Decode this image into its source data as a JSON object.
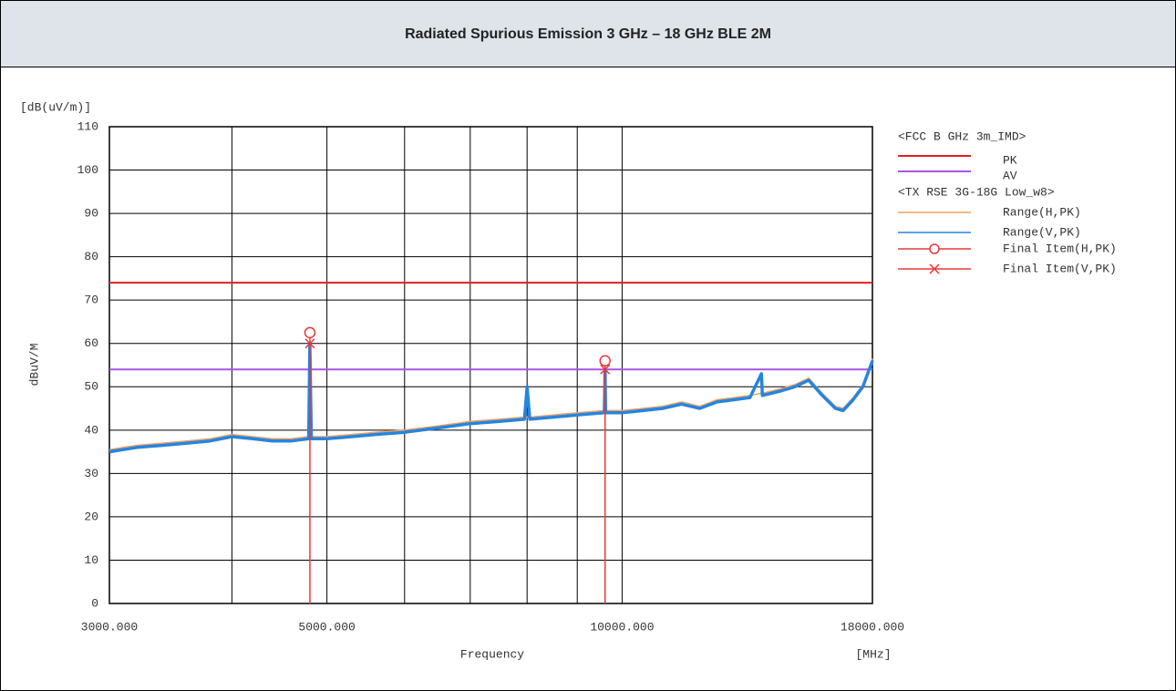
{
  "header": {
    "title": "Radiated Spurious Emission 3 GHz – 18 GHz BLE 2M"
  },
  "chart_data": {
    "type": "line",
    "y_unit": "[dB(uV/m)]",
    "ylabel": "dBuV/M",
    "xlabel": "Frequency",
    "x_unit": "[MHz]",
    "xscale": "log",
    "xlim": [
      3000,
      18000
    ],
    "xticks": [
      {
        "value": 3000,
        "label": "3000.000"
      },
      {
        "value": 5000,
        "label": "5000.000"
      },
      {
        "value": 10000,
        "label": "10000.000"
      },
      {
        "value": 18000,
        "label": "18000.000"
      }
    ],
    "x_gridlines": [
      4000,
      6000,
      7000,
      8000,
      9000
    ],
    "ylim": [
      0,
      110
    ],
    "yticks": [
      0,
      10,
      20,
      30,
      40,
      50,
      60,
      70,
      80,
      90,
      100,
      110
    ],
    "grid": true,
    "limit_group": "<FCC B GHz 3m_IMD>",
    "limits": [
      {
        "name": "PK",
        "color": "#e02020",
        "value": 74
      },
      {
        "name": "AV",
        "color": "#a855e0",
        "value": 54
      }
    ],
    "series_group": "<TX RSE 3G-18G Low_w8>",
    "x": [
      3000,
      3200,
      3400,
      3600,
      3800,
      4000,
      4200,
      4400,
      4600,
      4790,
      4804,
      4820,
      5000,
      5300,
      5600,
      6000,
      6500,
      7000,
      7500,
      7950,
      8000,
      8050,
      8500,
      9000,
      9590,
      9608,
      9620,
      10000,
      10500,
      11000,
      11500,
      12000,
      12500,
      13000,
      13500,
      13870,
      13900,
      14500,
      15000,
      15500,
      16000,
      16500,
      16800,
      17200,
      17600,
      18000
    ],
    "series": [
      {
        "name": "Range(H,PK)",
        "color": "#f0a060",
        "values": [
          35.5,
          36.5,
          37,
          37.5,
          38,
          39,
          38.5,
          38,
          38,
          38.5,
          39,
          38.5,
          38.5,
          39,
          39.5,
          40,
          41,
          42,
          42.5,
          43,
          43,
          43,
          43.5,
          44,
          44.5,
          45,
          44.5,
          44.5,
          45,
          45.5,
          46.5,
          45.5,
          47,
          47.5,
          48,
          48.5,
          48.5,
          49.5,
          50.5,
          52,
          48.5,
          45.5,
          45,
          47.5,
          50.5,
          56.5
        ]
      },
      {
        "name": "Range(V,PK)",
        "color": "#2585e0",
        "values": [
          35,
          36,
          36.5,
          37,
          37.5,
          38.5,
          38,
          37.5,
          37.5,
          38,
          60,
          38,
          38,
          38.5,
          39,
          39.5,
          40.5,
          41.5,
          42,
          42.5,
          50,
          42.5,
          43,
          43.5,
          44,
          54,
          44,
          44,
          44.5,
          45,
          46,
          45,
          46.5,
          47,
          47.5,
          53,
          48,
          49,
          50,
          51.5,
          48,
          45,
          44.5,
          47,
          50,
          56
        ]
      }
    ],
    "finals": [
      {
        "name": "Final Item(H,PK)",
        "color": "#e83838",
        "marker": "circle",
        "x": [
          4804,
          9608
        ],
        "values": [
          62.5,
          56
        ]
      },
      {
        "name": "Final Item(V,PK)",
        "color": "#e83838",
        "marker": "cross",
        "x": [
          4804,
          9608
        ],
        "values": [
          60,
          54
        ]
      }
    ]
  }
}
